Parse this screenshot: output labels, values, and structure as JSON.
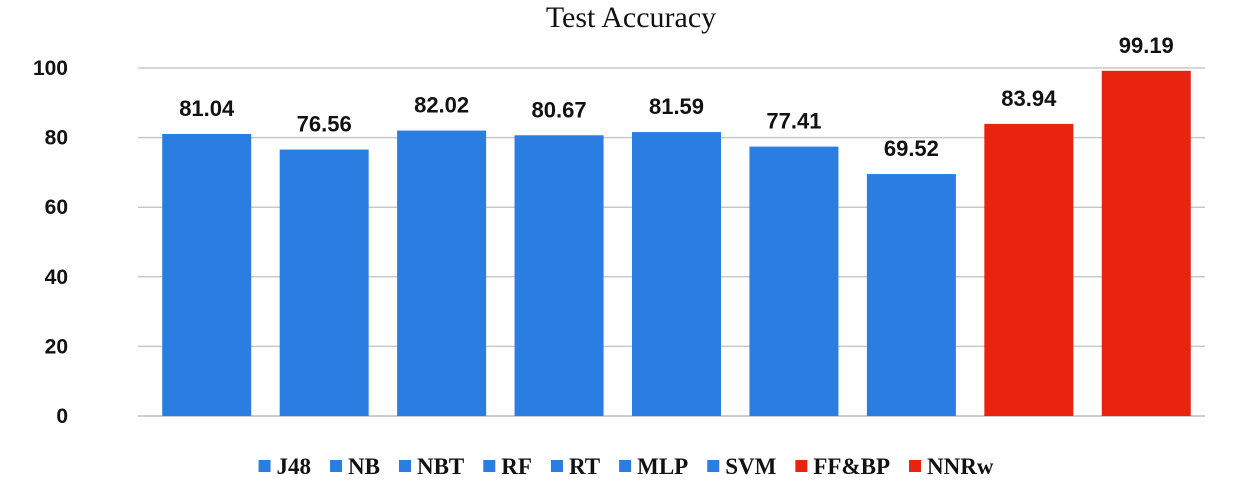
{
  "chart_data": {
    "type": "bar",
    "title": "Test Accuracy",
    "categories": [
      "J48",
      "NB",
      "NBT",
      "RF",
      "RT",
      "MLP",
      "SVM",
      "FF&BP",
      "NNRw"
    ],
    "values": [
      81.04,
      76.56,
      82.02,
      80.67,
      81.59,
      77.41,
      69.52,
      83.94,
      99.19
    ],
    "data_labels": [
      "81.04",
      "76.56",
      "82.02",
      "80.67",
      "81.59",
      "77.41",
      "69.52",
      "83.94",
      "99.19"
    ],
    "colors": [
      "#2a7de1",
      "#2a7de1",
      "#2a7de1",
      "#2a7de1",
      "#2a7de1",
      "#2a7de1",
      "#2a7de1",
      "#e8240e",
      "#e8240e"
    ],
    "xlabel": "",
    "ylabel": "",
    "ylim": [
      0,
      100
    ],
    "yticks": [
      0,
      20,
      40,
      60,
      80,
      100
    ],
    "grid": true,
    "legend_position": "bottom"
  }
}
